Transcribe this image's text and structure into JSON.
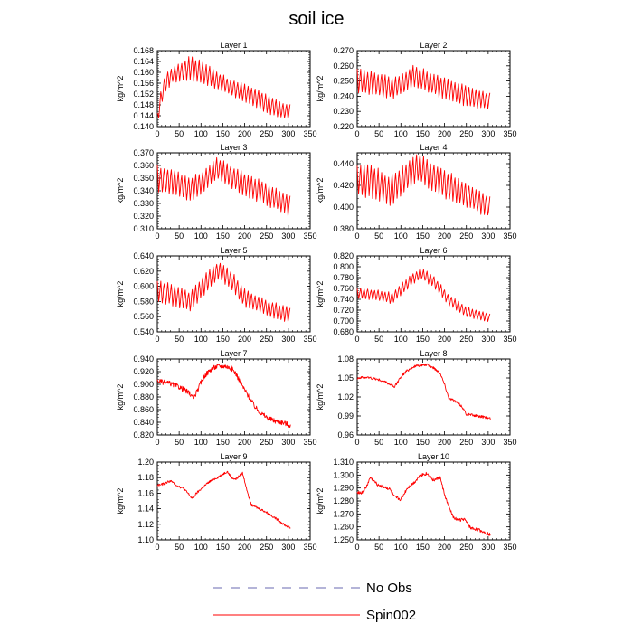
{
  "figure": {
    "title": "soil ice"
  },
  "legend": {
    "position": "bottom",
    "items": [
      {
        "label": "No Obs",
        "style": "dashed",
        "color": "#6a6ab0"
      },
      {
        "label": "Spin002",
        "style": "solid",
        "color": "#ff0000"
      }
    ]
  },
  "chart_data": [
    {
      "type": "line",
      "title": "Layer 1",
      "ylabel": "kg/m^2",
      "xlim": [
        0,
        350
      ],
      "ylim": [
        0.14,
        0.168
      ],
      "xticks": [
        0,
        50,
        100,
        150,
        200,
        250,
        300,
        350
      ],
      "yticks": [
        0.14,
        0.144,
        0.148,
        0.152,
        0.156,
        0.16,
        0.164,
        0.168
      ],
      "ydecimals": 3,
      "series": [
        {
          "name": "Spin002",
          "color": "#ff0000",
          "x_range": [
            0,
            305
          ],
          "envelope": {
            "x": [
              0,
              10,
              20,
              35,
              60,
              75,
              100,
              130,
              160,
              200,
              250,
              280,
              305
            ],
            "low": [
              0.141,
              0.148,
              0.153,
              0.156,
              0.157,
              0.157,
              0.156,
              0.154,
              0.152,
              0.149,
              0.145,
              0.143,
              0.142
            ],
            "high": [
              0.145,
              0.155,
              0.16,
              0.162,
              0.164,
              0.166,
              0.164,
              0.161,
              0.158,
              0.156,
              0.152,
              0.149,
              0.148
            ]
          }
        }
      ]
    },
    {
      "type": "line",
      "title": "Layer 2",
      "ylabel": "kg/m^2",
      "xlim": [
        0,
        350
      ],
      "ylim": [
        0.22,
        0.27
      ],
      "xticks": [
        0,
        50,
        100,
        150,
        200,
        250,
        300,
        350
      ],
      "yticks": [
        0.22,
        0.23,
        0.24,
        0.25,
        0.26,
        0.27
      ],
      "ydecimals": 3,
      "series": [
        {
          "name": "Spin002",
          "color": "#ff0000",
          "x_range": [
            0,
            305
          ],
          "envelope": {
            "x": [
              0,
              40,
              80,
              110,
              130,
              150,
              180,
              230,
              270,
              305
            ],
            "low": [
              0.242,
              0.24,
              0.238,
              0.242,
              0.246,
              0.244,
              0.24,
              0.235,
              0.232,
              0.231
            ],
            "high": [
              0.258,
              0.256,
              0.252,
              0.256,
              0.261,
              0.258,
              0.254,
              0.249,
              0.245,
              0.242
            ]
          }
        }
      ]
    },
    {
      "type": "line",
      "title": "Layer 3",
      "ylabel": "kg/m^2",
      "xlim": [
        0,
        350
      ],
      "ylim": [
        0.31,
        0.37
      ],
      "xticks": [
        0,
        50,
        100,
        150,
        200,
        250,
        300,
        350
      ],
      "yticks": [
        0.31,
        0.32,
        0.33,
        0.34,
        0.35,
        0.36,
        0.37
      ],
      "ydecimals": 3,
      "series": [
        {
          "name": "Spin002",
          "color": "#ff0000",
          "x_range": [
            0,
            305
          ],
          "envelope": {
            "x": [
              0,
              40,
              75,
              110,
              135,
              160,
              200,
              250,
              290,
              305
            ],
            "low": [
              0.338,
              0.336,
              0.331,
              0.34,
              0.349,
              0.344,
              0.336,
              0.328,
              0.322,
              0.318
            ],
            "high": [
              0.36,
              0.357,
              0.35,
              0.357,
              0.366,
              0.362,
              0.354,
              0.346,
              0.338,
              0.336
            ]
          }
        }
      ]
    },
    {
      "type": "line",
      "title": "Layer 4",
      "ylabel": "kg/m^2",
      "xlim": [
        0,
        350
      ],
      "ylim": [
        0.38,
        0.45
      ],
      "xticks": [
        0,
        50,
        100,
        150,
        200,
        250,
        300,
        350
      ],
      "yticks": [
        0.38,
        0.4,
        0.42,
        0.44
      ],
      "ydecimals": 3,
      "series": [
        {
          "name": "Spin002",
          "color": "#ff0000",
          "x_range": [
            0,
            305
          ],
          "envelope": {
            "x": [
              0,
              40,
              75,
              110,
              140,
              170,
              210,
              260,
              290,
              305
            ],
            "low": [
              0.41,
              0.407,
              0.4,
              0.413,
              0.424,
              0.415,
              0.405,
              0.398,
              0.392,
              0.39
            ],
            "high": [
              0.44,
              0.437,
              0.428,
              0.44,
              0.45,
              0.441,
              0.432,
              0.42,
              0.412,
              0.41
            ]
          }
        }
      ]
    },
    {
      "type": "line",
      "title": "Layer 5",
      "ylabel": "kg/m^2",
      "xlim": [
        0,
        350
      ],
      "ylim": [
        0.54,
        0.64
      ],
      "xticks": [
        0,
        50,
        100,
        150,
        200,
        250,
        300,
        350
      ],
      "yticks": [
        0.54,
        0.56,
        0.58,
        0.6,
        0.62,
        0.64
      ],
      "ydecimals": 3,
      "series": [
        {
          "name": "Spin002",
          "color": "#ff0000",
          "x_range": [
            0,
            305
          ],
          "envelope": {
            "x": [
              0,
              40,
              75,
              110,
              140,
              170,
              200,
              250,
              290,
              305
            ],
            "low": [
              0.577,
              0.574,
              0.567,
              0.59,
              0.61,
              0.595,
              0.572,
              0.562,
              0.553,
              0.551
            ],
            "high": [
              0.608,
              0.602,
              0.592,
              0.617,
              0.632,
              0.62,
              0.596,
              0.582,
              0.574,
              0.572
            ]
          }
        }
      ]
    },
    {
      "type": "line",
      "title": "Layer 6",
      "ylabel": "kg/m^2",
      "xlim": [
        0,
        350
      ],
      "ylim": [
        0.68,
        0.82
      ],
      "xticks": [
        0,
        50,
        100,
        150,
        200,
        250,
        300,
        350
      ],
      "yticks": [
        0.68,
        0.7,
        0.72,
        0.74,
        0.76,
        0.78,
        0.8,
        0.82
      ],
      "ydecimals": 3,
      "series": [
        {
          "name": "Spin002",
          "color": "#ff0000",
          "x_range": [
            0,
            305
          ],
          "envelope": {
            "x": [
              0,
              40,
              80,
              110,
              145,
              175,
              210,
              250,
              290,
              305
            ],
            "low": [
              0.742,
              0.738,
              0.732,
              0.755,
              0.778,
              0.762,
              0.728,
              0.708,
              0.7,
              0.698
            ],
            "high": [
              0.76,
              0.758,
              0.752,
              0.776,
              0.798,
              0.784,
              0.748,
              0.726,
              0.716,
              0.714
            ]
          }
        }
      ]
    },
    {
      "type": "line",
      "title": "Layer 7",
      "ylabel": "kg/m^2",
      "xlim": [
        0,
        350
      ],
      "ylim": [
        0.82,
        0.94
      ],
      "xticks": [
        0,
        50,
        100,
        150,
        200,
        250,
        300,
        350
      ],
      "yticks": [
        0.82,
        0.84,
        0.86,
        0.88,
        0.9,
        0.92,
        0.94
      ],
      "ydecimals": 3,
      "series": [
        {
          "name": "Spin002",
          "color": "#ff0000",
          "x": [
            0,
            15,
            30,
            50,
            65,
            75,
            82,
            90,
            100,
            110,
            125,
            140,
            155,
            170,
            180,
            195,
            210,
            225,
            240,
            255,
            270,
            285,
            295,
            305
          ],
          "y": [
            0.905,
            0.903,
            0.901,
            0.896,
            0.89,
            0.885,
            0.878,
            0.887,
            0.903,
            0.915,
            0.925,
            0.929,
            0.929,
            0.925,
            0.917,
            0.897,
            0.88,
            0.863,
            0.853,
            0.846,
            0.842,
            0.84,
            0.838,
            0.835
          ],
          "noise": 0.004
        }
      ]
    },
    {
      "type": "line",
      "title": "Layer 8",
      "ylabel": "kg/m^2",
      "xlim": [
        0,
        350
      ],
      "ylim": [
        0.96,
        1.08
      ],
      "xticks": [
        0,
        50,
        100,
        150,
        200,
        250,
        300,
        350
      ],
      "yticks": [
        0.96,
        0.99,
        1.02,
        1.05,
        1.08
      ],
      "yticklabels": [
        "0.96",
        "0.99",
        "1.02",
        "1.05",
        "1.08"
      ],
      "series": [
        {
          "name": "Spin002",
          "color": "#ff0000",
          "x": [
            0,
            20,
            40,
            60,
            75,
            85,
            100,
            115,
            130,
            145,
            160,
            175,
            190,
            200,
            210,
            225,
            240,
            250,
            260,
            275,
            290,
            305
          ],
          "y": [
            1.05,
            1.051,
            1.049,
            1.045,
            1.04,
            1.035,
            1.052,
            1.062,
            1.068,
            1.07,
            1.071,
            1.066,
            1.058,
            1.04,
            1.018,
            1.013,
            1.005,
            0.993,
            0.992,
            0.99,
            0.988,
            0.986
          ],
          "noise": 0.002
        }
      ]
    },
    {
      "type": "line",
      "title": "Layer 9",
      "ylabel": "kg/m^2",
      "xlim": [
        0,
        350
      ],
      "ylim": [
        1.1,
        1.2
      ],
      "xticks": [
        0,
        50,
        100,
        150,
        200,
        250,
        300,
        350
      ],
      "yticks": [
        1.1,
        1.12,
        1.14,
        1.16,
        1.18,
        1.2
      ],
      "yticklabels": [
        "1.10",
        "1.12",
        "1.14",
        "1.16",
        "1.18",
        "1.20"
      ],
      "series": [
        {
          "name": "Spin002",
          "color": "#ff0000",
          "x": [
            0,
            15,
            30,
            45,
            60,
            70,
            80,
            90,
            105,
            120,
            140,
            160,
            170,
            180,
            195,
            205,
            215,
            230,
            245,
            260,
            280,
            295,
            305
          ],
          "y": [
            1.17,
            1.172,
            1.176,
            1.17,
            1.166,
            1.16,
            1.153,
            1.16,
            1.168,
            1.175,
            1.181,
            1.188,
            1.18,
            1.178,
            1.186,
            1.165,
            1.145,
            1.141,
            1.137,
            1.132,
            1.124,
            1.118,
            1.115
          ],
          "noise": 0.0015
        }
      ]
    },
    {
      "type": "line",
      "title": "Layer 10",
      "ylabel": "kg/m^2",
      "xlim": [
        0,
        350
      ],
      "ylim": [
        1.25,
        1.31
      ],
      "xticks": [
        0,
        50,
        100,
        150,
        200,
        250,
        300,
        350
      ],
      "yticks": [
        1.25,
        1.26,
        1.27,
        1.28,
        1.29,
        1.3,
        1.31
      ],
      "ydecimals": 3,
      "series": [
        {
          "name": "Spin002",
          "color": "#ff0000",
          "x": [
            0,
            10,
            20,
            30,
            45,
            60,
            75,
            85,
            100,
            115,
            130,
            145,
            160,
            175,
            190,
            200,
            210,
            220,
            230,
            245,
            260,
            275,
            290,
            305
          ],
          "y": [
            1.287,
            1.286,
            1.29,
            1.298,
            1.293,
            1.291,
            1.289,
            1.283,
            1.281,
            1.29,
            1.294,
            1.3,
            1.301,
            1.296,
            1.298,
            1.285,
            1.275,
            1.268,
            1.265,
            1.266,
            1.259,
            1.258,
            1.256,
            1.254
          ],
          "noise": 0.0012
        }
      ]
    }
  ]
}
